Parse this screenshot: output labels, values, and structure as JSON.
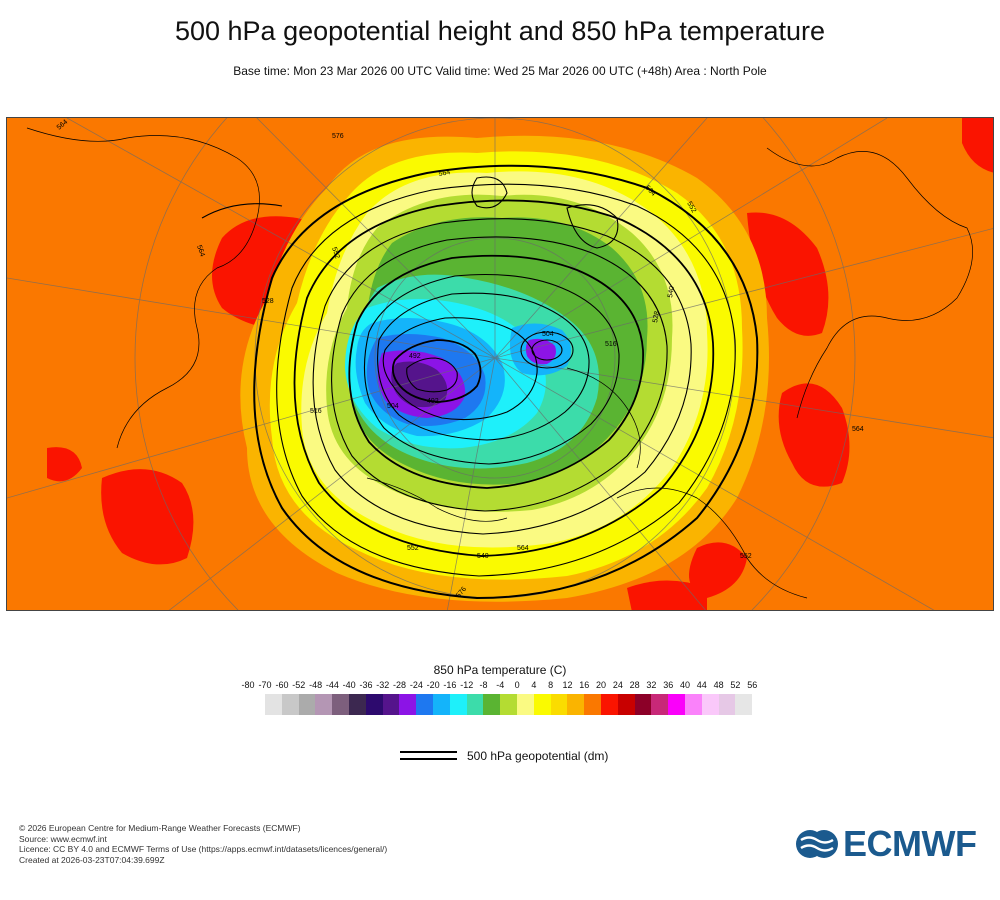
{
  "header": {
    "title": "500 hPa geopotential height and 850 hPa temperature",
    "subtitle": "Base time: Mon 23 Mar 2026 00 UTC Valid time: Wed 25 Mar 2026 00 UTC (+48h) Area : North Pole"
  },
  "map": {
    "contour_labels": [
      "564",
      "564",
      "552",
      "564",
      "576",
      "564",
      "552",
      "540",
      "528",
      "516",
      "504",
      "492",
      "492",
      "504",
      "516",
      "528",
      "540",
      "552",
      "564",
      "576",
      "552",
      "564"
    ]
  },
  "legend": {
    "title": "850 hPa temperature (C)",
    "tick_labels": [
      "-80",
      "-70",
      "-60",
      "-52",
      "-48",
      "-44",
      "-40",
      "-36",
      "-32",
      "-28",
      "-24",
      "-20",
      "-16",
      "-12",
      "-8",
      "-4",
      "0",
      "4",
      "8",
      "12",
      "16",
      "20",
      "24",
      "28",
      "32",
      "36",
      "40",
      "44",
      "48",
      "52",
      "56"
    ],
    "colors": [
      "#e3e3e3",
      "#c8c8c8",
      "#ababab",
      "#b496b4",
      "#7d5f7d",
      "#3c2850",
      "#2d0a6e",
      "#55148c",
      "#8c14e6",
      "#1e78f0",
      "#14b4fa",
      "#1ef0fa",
      "#3cdcaa",
      "#5ab432",
      "#b4dc32",
      "#fafa82",
      "#fafa00",
      "#fadc00",
      "#fab400",
      "#fa7800",
      "#fa1400",
      "#c80000",
      "#8c0028",
      "#c82878",
      "#fa00fa",
      "#fa82fa",
      "#fac8fa",
      "#e6c8e6",
      "#e6e6e6"
    ],
    "line_label": "500 hPa geopotential (dm)"
  },
  "footer": {
    "lines": [
      "© 2026 European Centre for Medium-Range Weather Forecasts (ECMWF)",
      "Source: www.ecmwf.int",
      "Licence: CC BY 4.0 and ECMWF Terms of Use (https://apps.ecmwf.int/datasets/licences/general/)",
      "Created at 2026-03-23T07:04:39.699Z"
    ],
    "logo_text": "ECMWF",
    "logo_color": "#1b5a8e"
  }
}
